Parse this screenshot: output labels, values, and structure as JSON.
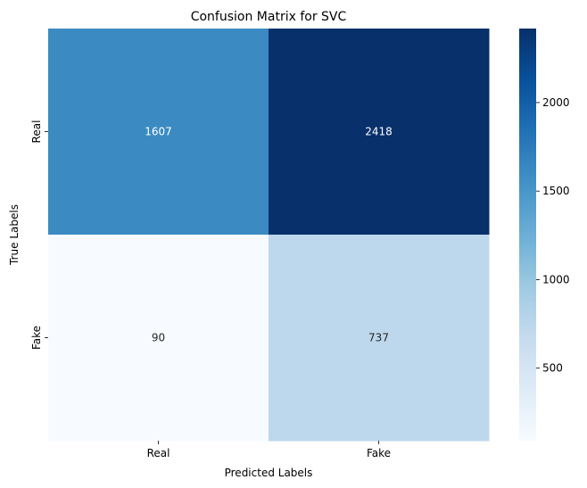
{
  "chart_data": {
    "type": "heatmap",
    "title": "Confusion Matrix for SVC",
    "xlabel": "Predicted Labels",
    "ylabel": "True Labels",
    "x_categories": [
      "Real",
      "Fake"
    ],
    "y_categories": [
      "Real",
      "Fake"
    ],
    "values": [
      [
        1607,
        2418
      ],
      [
        90,
        737
      ]
    ],
    "colormap": "Blues",
    "colorbar": {
      "min": 90,
      "max": 2418,
      "ticks": [
        500,
        1000,
        1500,
        2000
      ]
    },
    "grid": false
  }
}
